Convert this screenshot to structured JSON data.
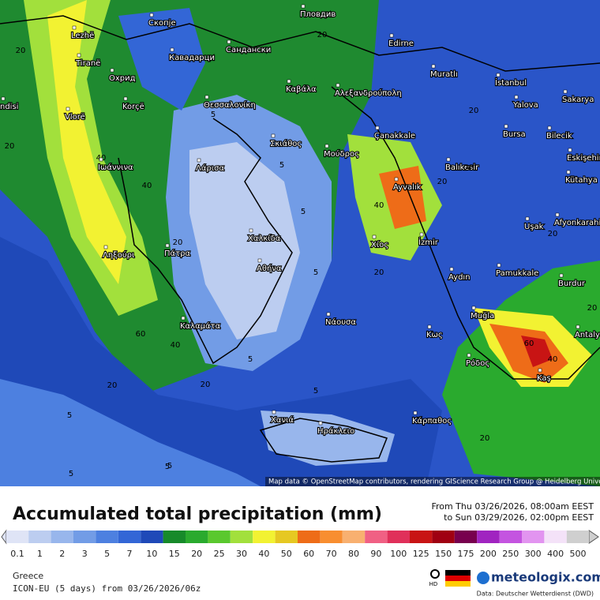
{
  "map": {
    "cities": [
      "Lezhë",
      "Скопје",
      "Пловдив",
      "Edirne",
      "Tiranë",
      "Сандански",
      "Кавадарци",
      "Охрид",
      "Muratlı",
      "İstanbul",
      "Καβάλα",
      "Αλεξανδρούπολη",
      "Korçë",
      "Θεσσαλονίκη",
      "Yalova",
      "Sakarya",
      "Vlorë",
      "Bursa",
      "Bilecik",
      "Çanakkale",
      "Σκιάθος",
      "Eskişehir",
      "Μούδρος",
      "Ιωάννινα",
      "Λάρισα",
      "Balıkesir",
      "Kütahya",
      "Ayvalık",
      "Uşak",
      "Afyonkarahisar",
      "Χαλκίδα",
      "Ληξούρι",
      "Πάτρα",
      "Χίος",
      "İzmir",
      "Αθήνα",
      "Aydın",
      "Pamukkale",
      "Burdur",
      "Καλαμάτα",
      "Νάουσα",
      "Muğla",
      "Κως",
      "Antalya",
      "Ρόδος",
      "Kaş",
      "Χανιά",
      "Ηράκλειο",
      "Κάρπαθος",
      "ndisi"
    ],
    "contour_labels": [
      "20",
      "20",
      "20",
      "20",
      "40",
      "40",
      "20",
      "5",
      "5",
      "5",
      "5",
      "5",
      "5",
      "20",
      "20",
      "40",
      "60",
      "40",
      "60",
      "20",
      "5",
      "5",
      "5",
      "20",
      "20",
      "40",
      "20",
      "20",
      "5",
      "20"
    ],
    "attribution": "Map data © OpenStreetMap contributors, rendering GIScience Research Group @ Heidelberg University"
  },
  "legend": {
    "title": "Accumulated total precipitation (mm)",
    "period_from": "From Thu 03/26/2026, 08:00am EEST",
    "period_to": "to Sun 03/29/2026, 02:00pm EEST",
    "levels": [
      0.1,
      1,
      2,
      3,
      5,
      7,
      10,
      15,
      20,
      25,
      30,
      40,
      50,
      60,
      70,
      80,
      90,
      100,
      125,
      150,
      175,
      200,
      250,
      300,
      400,
      500
    ],
    "colors": [
      "#dfe4f6",
      "#bccdf0",
      "#98b6ec",
      "#729ce6",
      "#4d80e0",
      "#3366d6",
      "#1f49b8",
      "#178a2a",
      "#2aaa2e",
      "#5ac82e",
      "#a2e03c",
      "#f2f232",
      "#e6c822",
      "#ee6c18",
      "#f88e30",
      "#f8b070",
      "#f06084",
      "#e0305a",
      "#c81414",
      "#a00012",
      "#78004e",
      "#a024c0",
      "#c454e0",
      "#e294f0",
      "#f4e2f8",
      "#cfcfcf"
    ]
  },
  "footer": {
    "region": "Greece",
    "model": "ICON-EU (5 days) from 03/26/2026/06z",
    "hd": "HD",
    "brand": "meteologix.com",
    "source": "Data: Deutscher Wetterdienst (DWD)"
  }
}
